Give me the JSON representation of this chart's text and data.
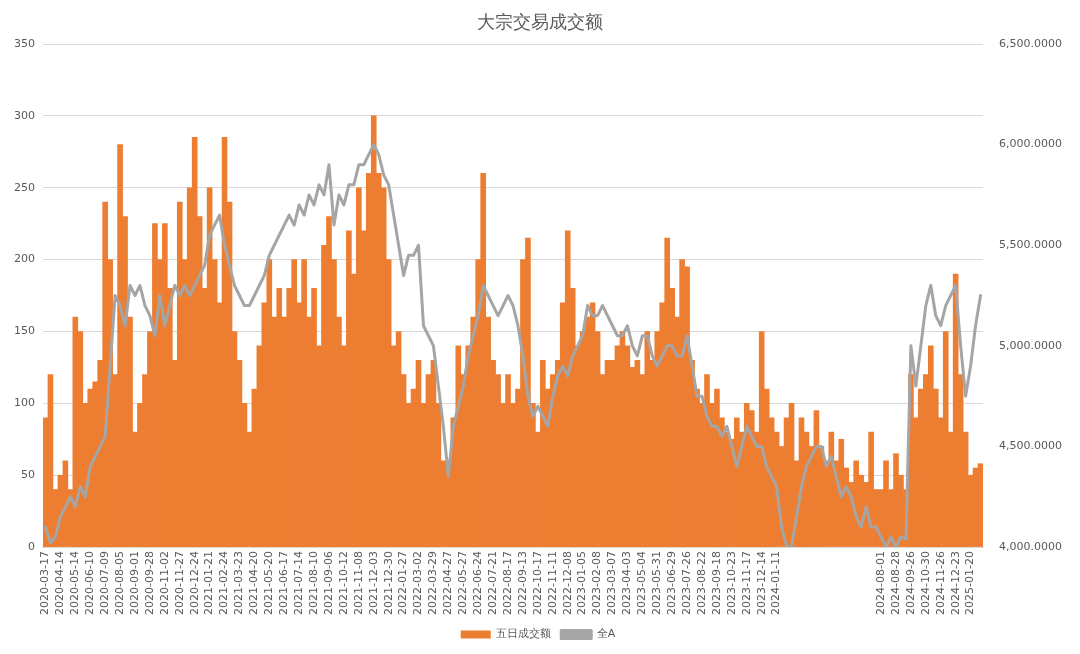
{
  "chart_data": {
    "type": "bar",
    "title": "大宗交易成交额",
    "legend": "bottom",
    "grid": "y",
    "categories": [
      "2020-03-17",
      null,
      null,
      "2020-04-14",
      null,
      null,
      "2020-05-14",
      null,
      null,
      "2020-06-10",
      null,
      null,
      "2020-07-09",
      null,
      null,
      "2020-08-05",
      null,
      null,
      "2020-09-01",
      null,
      null,
      "2020-09-28",
      null,
      null,
      "2020-11-02",
      null,
      null,
      "2020-11-27",
      null,
      null,
      "2020-12-24",
      null,
      null,
      "2021-01-21",
      null,
      null,
      "2021-02-24",
      null,
      null,
      "2021-03-23",
      null,
      null,
      "2021-04-20",
      null,
      null,
      "2021-05-20",
      null,
      null,
      "2021-06-17",
      null,
      null,
      "2021-07-14",
      null,
      null,
      "2021-08-10",
      null,
      null,
      "2021-09-06",
      null,
      null,
      "2021-10-12",
      null,
      null,
      "2021-11-08",
      null,
      null,
      "2021-12-03",
      null,
      null,
      "2021-12-30",
      null,
      null,
      "2022-01-27",
      null,
      null,
      "2022-03-02",
      null,
      null,
      "2022-03-29",
      null,
      null,
      "2022-04-27",
      null,
      null,
      "2022-05-27",
      null,
      null,
      "2022-06-24",
      null,
      null,
      "2022-07-21",
      null,
      null,
      "2022-08-17",
      null,
      null,
      "2022-09-13",
      null,
      null,
      "2022-10-17",
      null,
      null,
      "2022-11-11",
      null,
      null,
      "2022-12-08",
      null,
      null,
      "2023-01-05",
      null,
      null,
      "2023-02-08",
      null,
      null,
      "2023-03-07",
      null,
      null,
      "2023-04-03",
      null,
      null,
      "2023-05-04",
      null,
      null,
      "2023-05-31",
      null,
      null,
      "2023-06-29",
      null,
      null,
      "2023-07-26",
      null,
      null,
      "2023-08-22",
      null,
      null,
      "2023-09-18",
      null,
      null,
      "2023-10-23",
      null,
      null,
      "2023-11-17",
      null,
      null,
      "2023-12-14",
      null,
      null,
      "2024-01-11",
      null,
      null,
      null,
      null,
      null,
      null,
      null,
      null,
      null,
      null,
      null,
      null,
      null,
      null,
      null,
      null,
      null,
      null,
      null,
      null,
      "2024-08-01",
      null,
      null,
      "2024-08-28",
      null,
      null,
      "2024-09-26",
      null,
      null,
      "2024-10-30",
      null,
      null,
      "2024-11-26",
      null,
      null,
      "2024-12-23",
      null,
      null,
      "2025-01-20",
      null,
      null
    ],
    "ylim": [
      0,
      350
    ],
    "yticks": [
      0,
      50,
      100,
      150,
      200,
      250,
      300,
      350
    ],
    "y2lim": [
      4000,
      6500
    ],
    "y2ticks": [
      {
        "value": 4000,
        "label": "4,000.0000"
      },
      {
        "value": 4500,
        "label": "4,500.0000"
      },
      {
        "value": 5000,
        "label": "5,000.0000"
      },
      {
        "value": 5500,
        "label": "5,500.0000"
      },
      {
        "value": 6000,
        "label": "6,000.0000"
      },
      {
        "value": 6500,
        "label": "6,500.0000"
      }
    ],
    "series": [
      {
        "name": "五日成交额",
        "color": "#ed7d31",
        "values": [
          90,
          120,
          40,
          50,
          60,
          40,
          160,
          150,
          100,
          110,
          115,
          130,
          240,
          200,
          120,
          280,
          230,
          160,
          80,
          100,
          120,
          150,
          225,
          200,
          225,
          180,
          130,
          240,
          200,
          250,
          285,
          230,
          180,
          250,
          200,
          170,
          285,
          240,
          150,
          130,
          100,
          80,
          110,
          140,
          170,
          200,
          160,
          180,
          160,
          180,
          200,
          170,
          200,
          160,
          180,
          140,
          210,
          230,
          200,
          160,
          140,
          220,
          190,
          250,
          220,
          260,
          300,
          260,
          250,
          200,
          140,
          150,
          120,
          100,
          110,
          130,
          100,
          120,
          130,
          100,
          60,
          60,
          90,
          140,
          120,
          140,
          160,
          200,
          260,
          160,
          130,
          120,
          100,
          120,
          100,
          110,
          200,
          215,
          100,
          80,
          130,
          110,
          120,
          130,
          170,
          220,
          180,
          140,
          150,
          160,
          170,
          150,
          120,
          130,
          130,
          140,
          150,
          140,
          125,
          130,
          120,
          150,
          130,
          150,
          170,
          215,
          180,
          160,
          200,
          195,
          130,
          110,
          100,
          120,
          100,
          110,
          90,
          80,
          75,
          90,
          80,
          100,
          95,
          80,
          150,
          110,
          90,
          80,
          70,
          90,
          100,
          60,
          90,
          80,
          70,
          95,
          70,
          60,
          80,
          60,
          75,
          55,
          45,
          60,
          50,
          45,
          80,
          40,
          40,
          60,
          40,
          65,
          50,
          40,
          120,
          90,
          110,
          120,
          140,
          110,
          90,
          150,
          80,
          190,
          120,
          80,
          50,
          55,
          58
        ]
      },
      {
        "name": "全A",
        "type": "line",
        "axis": "y2",
        "color": "#a5a5a5",
        "values": [
          4100,
          4020,
          4050,
          4150,
          4200,
          4250,
          4200,
          4300,
          4250,
          4400,
          4450,
          4500,
          4550,
          4900,
          5250,
          5200,
          5100,
          5300,
          5250,
          5300,
          5200,
          5150,
          5050,
          5250,
          5100,
          5200,
          5300,
          5250,
          5300,
          5250,
          5300,
          5350,
          5400,
          5550,
          5600,
          5650,
          5500,
          5400,
          5300,
          5250,
          5200,
          5200,
          5250,
          5300,
          5350,
          5450,
          5500,
          5550,
          5600,
          5650,
          5600,
          5700,
          5650,
          5750,
          5700,
          5800,
          5750,
          5900,
          5600,
          5750,
          5700,
          5800,
          5800,
          5900,
          5900,
          5950,
          6000,
          5950,
          5850,
          5800,
          5650,
          5500,
          5350,
          5450,
          5450,
          5500,
          5100,
          5050,
          5000,
          4800,
          4600,
          4350,
          4600,
          4700,
          4800,
          4950,
          5050,
          5150,
          5300,
          5250,
          5200,
          5150,
          5200,
          5250,
          5200,
          5100,
          4950,
          4750,
          4650,
          4700,
          4650,
          4600,
          4750,
          4850,
          4900,
          4850,
          4950,
          5000,
          5050,
          5200,
          5150,
          5150,
          5200,
          5150,
          5100,
          5050,
          5050,
          5100,
          5000,
          4950,
          5050,
          5050,
          4950,
          4900,
          4950,
          5000,
          5000,
          4950,
          4950,
          5050,
          4900,
          4750,
          4750,
          4650,
          4600,
          4600,
          4550,
          4600,
          4500,
          4400,
          4500,
          4600,
          4550,
          4500,
          4500,
          4400,
          4350,
          4300,
          4100,
          4000,
          4000,
          4150,
          4300,
          4400,
          4450,
          4500,
          4500,
          4400,
          4450,
          4350,
          4250,
          4300,
          4250,
          4150,
          4100,
          4200,
          4100,
          4100,
          4050,
          4000,
          4050,
          4000,
          4050,
          4040,
          5000,
          4800,
          5000,
          5200,
          5300,
          5150,
          5100,
          5200,
          5250,
          5300,
          5000,
          4750,
          4900,
          5100,
          5250
        ]
      }
    ]
  }
}
